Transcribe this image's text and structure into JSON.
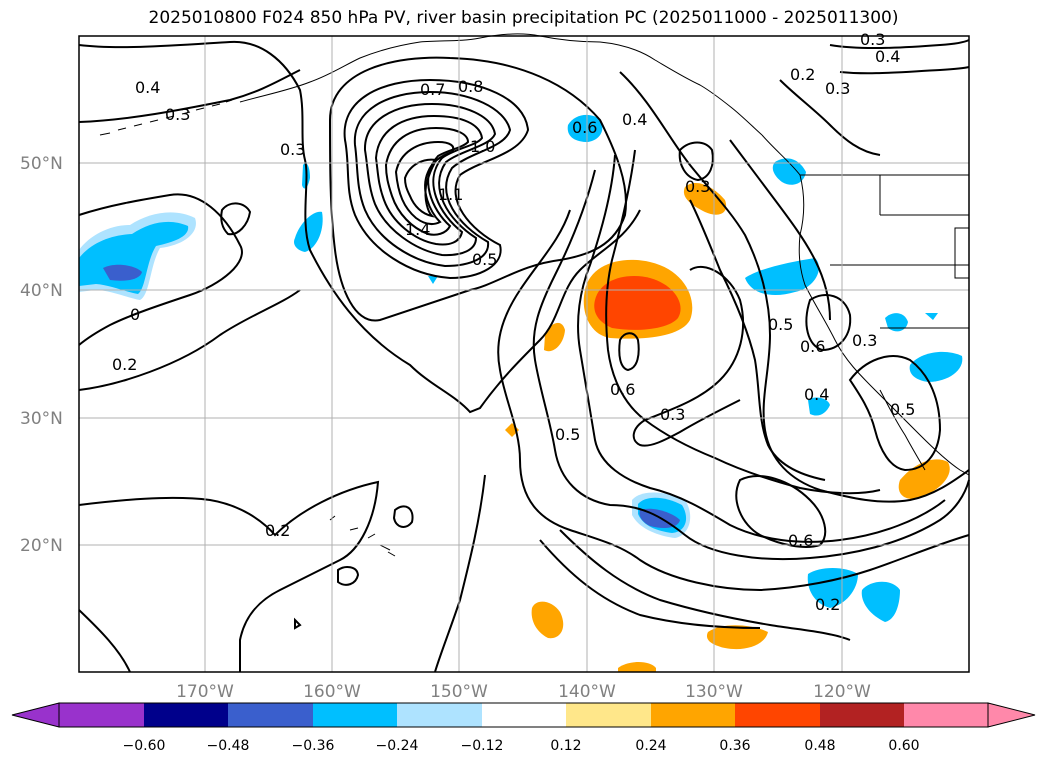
{
  "title": "2025010800 F024 850 hPa PV, river basin precipitation PC (2025011000 - 2025011300)",
  "lat_labels": [
    "50°N",
    "40°N",
    "30°N",
    "20°N"
  ],
  "lon_labels": [
    "170°W",
    "160°W",
    "150°W",
    "140°W",
    "130°W",
    "120°W"
  ],
  "colorbar": {
    "levels": [
      "−0.60",
      "−0.48",
      "−0.36",
      "−0.24",
      "−0.12",
      "0.12",
      "0.24",
      "0.36",
      "0.48",
      "0.60"
    ],
    "colors": [
      "#9932cc",
      "#00008b",
      "#3a5fcd",
      "#00bfff",
      "#aee3ff",
      "#ffffff",
      "#ffe78a",
      "#ffa500",
      "#ff4500",
      "#b22222",
      "#ff88aa"
    ]
  },
  "contour_labels": [
    "0.4",
    "0.3",
    "0.3",
    "0.7",
    "0.8",
    "1.0",
    "1.1",
    "1.4",
    "0.5",
    "0.6",
    "0.4",
    "0.3",
    "0.3",
    "0.4",
    "0.3",
    "0.5",
    "0.6",
    "0.3",
    "0.4",
    "0.6",
    "0.5",
    "0.3",
    "0.5",
    "0.2",
    "0.2",
    "0",
    "0.2",
    "0.6",
    "0.2"
  ],
  "colors": {
    "contour": "#000000",
    "grid": "#b0b0b0",
    "axis_label": "#808080"
  }
}
